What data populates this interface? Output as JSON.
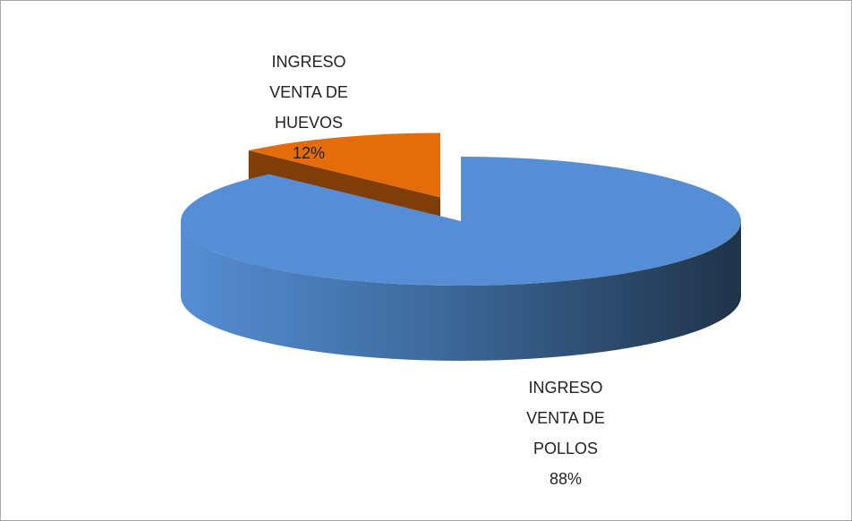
{
  "chart_data": {
    "type": "pie",
    "categories": [
      "INGRESO VENTA DE POLLOS",
      "INGRESO VENTA DE HUEVOS"
    ],
    "values": [
      88,
      12
    ],
    "value_labels": [
      "88%",
      "12%"
    ],
    "colors": [
      "#558ed5",
      "#e46c0a"
    ],
    "side_colors": [
      "#1f3349",
      "#7f3d08"
    ],
    "three_d": true
  }
}
